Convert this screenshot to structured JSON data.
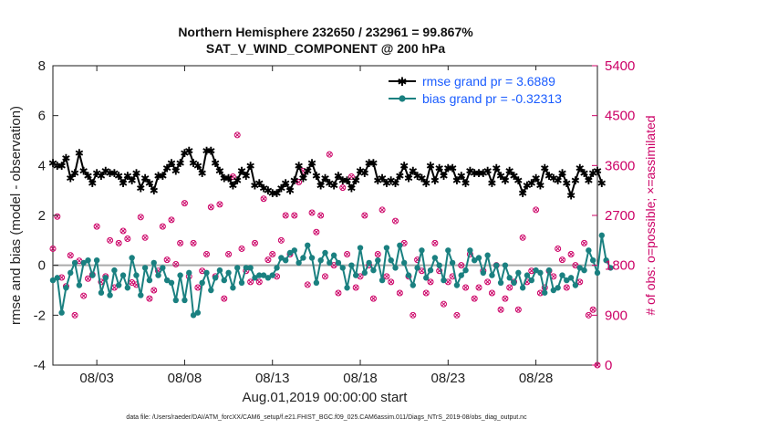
{
  "chart_data": {
    "type": "line",
    "title_line1": "Northern Hemisphere 232650 / 232961 = 99.867%",
    "title_line2": "SAT_V_WIND_COMPONENT @ 200 hPa",
    "ylabel": "rmse and bias (model - observation)",
    "ylabel_right": "# of obs: o=possible; ×=assimilated",
    "xlabel": "Aug.01,2019 00:00:00 start",
    "footnote": "data file: /Users/raeder/DAI/ATM_forcXX/CAM6_setup/f.e21.FHIST_BGC.f09_025.CAM6assim.011/Diags_NTrS_2019-08/obs_diag_output.nc",
    "xlim": [
      0.5,
      31.5
    ],
    "ylim": [
      -4,
      8
    ],
    "ylim_right": [
      0,
      5400
    ],
    "x_ticks": [
      3,
      8,
      13,
      18,
      23,
      28
    ],
    "x_tick_labels": [
      "08/03",
      "08/08",
      "08/13",
      "08/18",
      "08/23",
      "08/28"
    ],
    "y_ticks": [
      "-4",
      "-2",
      "0",
      "2",
      "4",
      "6",
      "8"
    ],
    "y_ticks_right": [
      "0",
      "900",
      "1800",
      "2700",
      "3600",
      "4500",
      "5400"
    ],
    "zero_line": 0,
    "x_start": 0.5,
    "x_step": 0.25,
    "series": [
      {
        "name": "rmse",
        "legend": "rmse grand pr = 3.6889",
        "color": "#000000",
        "marker": "star",
        "values": [
          4.1,
          4.0,
          4.0,
          4.3,
          3.5,
          3.7,
          4.5,
          3.8,
          3.6,
          3.3,
          3.7,
          3.6,
          3.8,
          3.7,
          3.7,
          3.6,
          3.3,
          3.6,
          3.4,
          3.7,
          3.1,
          3.5,
          3.3,
          3.0,
          3.6,
          3.6,
          3.9,
          4.1,
          3.8,
          4.1,
          4.5,
          4.6,
          4.1,
          4.0,
          3.7,
          4.6,
          4.6,
          4.1,
          3.8,
          3.5,
          3.5,
          3.2,
          3.4,
          3.8,
          3.6,
          4.0,
          3.2,
          3.3,
          3.1,
          3.0,
          2.9,
          2.9,
          3.1,
          3.3,
          3.0,
          3.4,
          4.0,
          3.5,
          3.8,
          4.1,
          3.6,
          3.2,
          3.5,
          3.3,
          3.2,
          3.6,
          3.4,
          3.4,
          3.1,
          3.4,
          3.8,
          3.7,
          4.1,
          4.1,
          3.4,
          3.5,
          3.3,
          3.4,
          3.3,
          3.6,
          4.0,
          3.5,
          3.8,
          3.6,
          3.5,
          3.3,
          4.0,
          3.4,
          3.9,
          3.6,
          3.9,
          3.9,
          3.4,
          3.6,
          3.3,
          3.8,
          3.7,
          3.7,
          3.7,
          3.8,
          3.3,
          3.9,
          3.6,
          3.4,
          3.8,
          3.6,
          3.4,
          2.9,
          3.2,
          3.3,
          3.5,
          3.2,
          3.9,
          3.6,
          3.5,
          3.4,
          3.7,
          3.3,
          2.8,
          3.4,
          3.9,
          3.7,
          3.4,
          3.7,
          3.8,
          3.3
        ]
      },
      {
        "name": "bias",
        "legend": "bias grand pr = -0.32313",
        "color": "#1a8080",
        "marker": "dot",
        "values": [
          -0.6,
          -0.5,
          -1.9,
          -0.9,
          -0.3,
          0.1,
          -0.8,
          0.1,
          0.2,
          -0.4,
          0.2,
          -1.1,
          -0.5,
          -1.2,
          -0.2,
          -0.8,
          -0.4,
          -0.9,
          0.3,
          -0.4,
          -1.2,
          -0.1,
          -0.6,
          0.1,
          -0.4,
          -0.1,
          -0.6,
          -0.7,
          -1.4,
          -0.4,
          -1.4,
          -0.3,
          -2.0,
          -1.9,
          -0.7,
          -0.3,
          -1.0,
          -0.5,
          -0.2,
          -0.6,
          -0.3,
          -0.9,
          -0.1,
          -0.7,
          -0.1,
          -0.1,
          -0.5,
          -0.4,
          -0.4,
          -0.5,
          -0.4,
          -0.1,
          0.3,
          0.2,
          0.5,
          0.6,
          0.1,
          0.3,
          0.8,
          0.3,
          -0.7,
          0.2,
          0.5,
          0.1,
          0.4,
          0.1,
          -0.1,
          -0.9,
          0.0,
          -0.4,
          0.7,
          -0.3,
          0.1,
          -0.2,
          0.2,
          -0.6,
          0.7,
          0.2,
          -0.1,
          0.8,
          0.1,
          -0.4,
          -0.8,
          -0.1,
          0.6,
          -0.5,
          -0.2,
          0.3,
          0.0,
          -0.6,
          0.6,
          0.1,
          -0.8,
          -0.4,
          -0.2,
          0.6,
          0.2,
          0.3,
          -0.3,
          0.4,
          -0.4,
          0.0,
          -0.7,
          0.0,
          -0.5,
          -0.7,
          -0.3,
          -0.9,
          -0.4,
          -0.6,
          -0.2,
          -0.3,
          -1.1,
          -0.2,
          -1.0,
          -0.9,
          -0.4,
          -0.6,
          -0.5,
          -0.8,
          -0.1,
          -0.2,
          0.6,
          0.2,
          -0.3,
          1.2,
          0.2,
          -0.1
        ]
      },
      {
        "name": "obs_possible",
        "legend": "",
        "color": "#cc0066",
        "marker": "circle",
        "axis": "right",
        "values": [
          2100,
          2680,
          1580,
          1420,
          1980,
          900,
          1880,
          1250,
          1560,
          1630,
          2500,
          1500,
          1600,
          2250,
          1400,
          2200,
          2420,
          2280,
          1490,
          1450,
          2670,
          2300,
          1200,
          1350,
          1700,
          2500,
          1900,
          2620,
          1820,
          2200,
          2920,
          1600,
          2200,
          1400,
          1700,
          2000,
          2850,
          1600,
          2900,
          1200,
          2000,
          3400,
          4150,
          2100,
          1700,
          1500,
          2200,
          1500,
          3000,
          1900,
          2000,
          1600,
          2250,
          2700,
          2000,
          2700,
          3300,
          3500,
          1450,
          2750,
          2400,
          2700,
          1600,
          3800,
          1800,
          1300,
          3200,
          2000,
          3400,
          1400,
          1600,
          2700,
          1800,
          1200,
          2000,
          2800,
          1600,
          1500,
          2600,
          1300,
          2200,
          1600,
          900,
          1900,
          1700,
          1300,
          1500,
          2200,
          1700,
          1100,
          1500,
          1600,
          900,
          1800,
          1400,
          2000,
          1200,
          1400,
          1700,
          1500,
          1300,
          1800,
          1000,
          1200,
          1400,
          1500,
          1000,
          2300,
          1500,
          1700,
          2800,
          1300,
          1400,
          1700,
          1600,
          2100,
          1900,
          1400,
          2000,
          1800,
          1500,
          2200,
          900,
          1000,
          0
        ]
      },
      {
        "name": "obs_assimilated",
        "legend": "",
        "color": "#cc0066",
        "marker": "x",
        "axis": "right",
        "values": [
          2100,
          2680,
          1580,
          1420,
          1980,
          900,
          1880,
          1250,
          1560,
          1630,
          2500,
          1500,
          1600,
          2250,
          1400,
          2200,
          2420,
          2280,
          1490,
          1450,
          2670,
          2300,
          1200,
          1350,
          1700,
          2500,
          1900,
          2620,
          1820,
          2200,
          2920,
          1600,
          2200,
          1400,
          1700,
          2000,
          2850,
          1600,
          2900,
          1200,
          2000,
          3400,
          4150,
          2100,
          1700,
          1500,
          2200,
          1500,
          3000,
          1900,
          2000,
          1600,
          2250,
          2700,
          2000,
          2700,
          3300,
          3500,
          1450,
          2750,
          2400,
          2700,
          1600,
          3800,
          1800,
          1300,
          3200,
          2000,
          3400,
          1400,
          1600,
          2700,
          1800,
          1200,
          2000,
          2800,
          1600,
          1500,
          2600,
          1300,
          2200,
          1600,
          900,
          1900,
          1700,
          1300,
          1500,
          2200,
          1700,
          1100,
          1500,
          1600,
          900,
          1800,
          1400,
          2000,
          1200,
          1400,
          1700,
          1500,
          1300,
          1800,
          1000,
          1200,
          1400,
          1500,
          1000,
          2300,
          1500,
          1700,
          2800,
          1300,
          1400,
          1700,
          1600,
          2100,
          1900,
          1400,
          2000,
          1800,
          1500,
          2200,
          900,
          1000,
          0
        ]
      }
    ]
  }
}
